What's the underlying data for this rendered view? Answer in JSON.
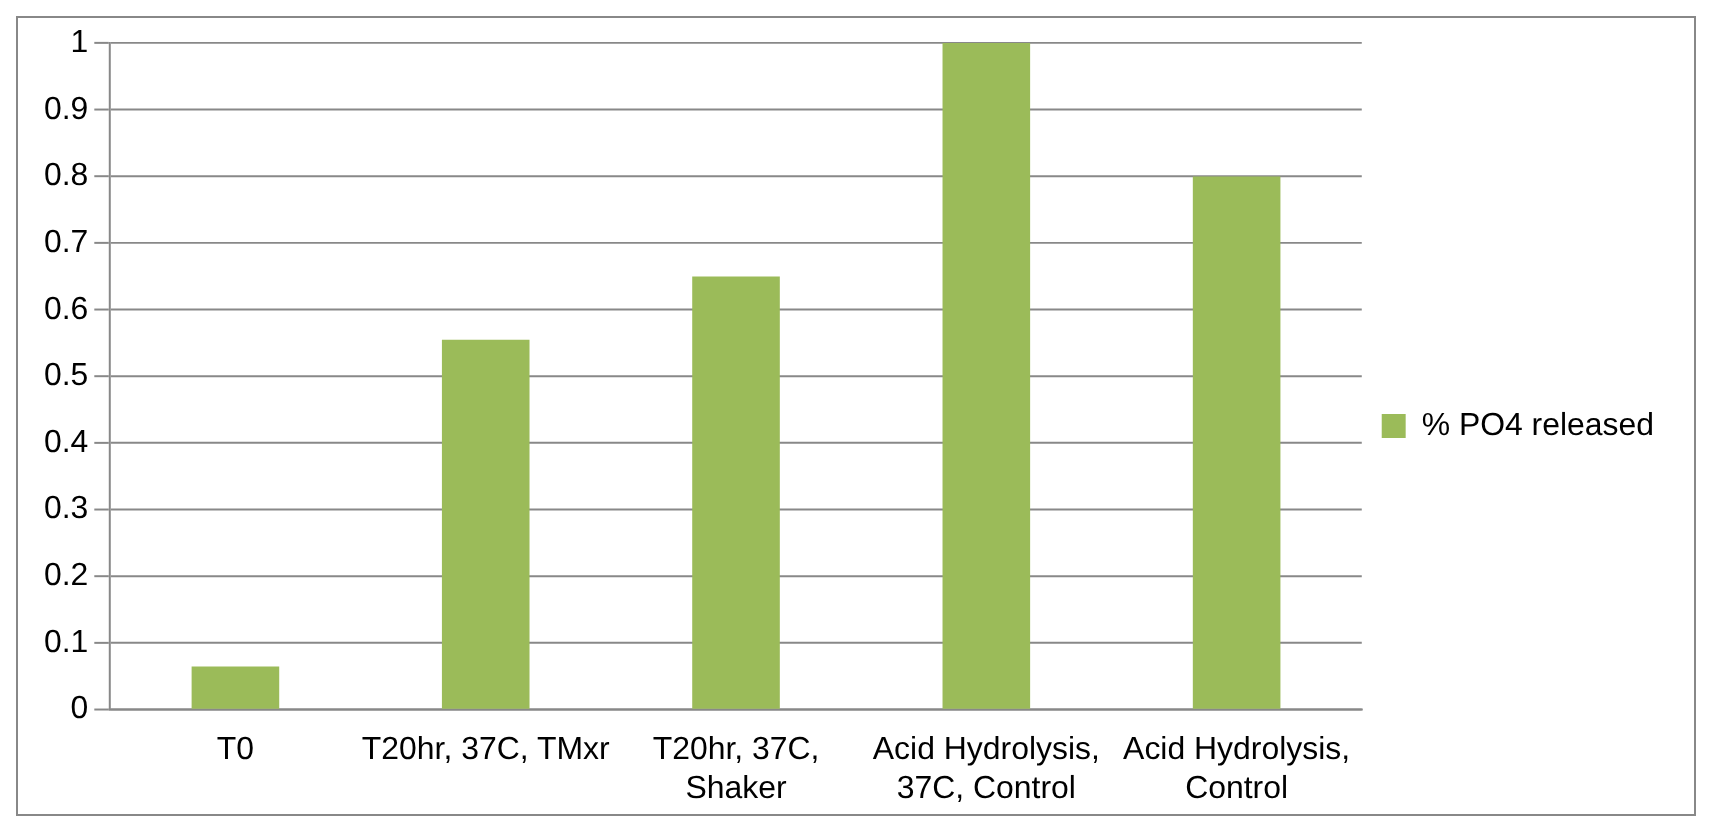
{
  "chart_data": {
    "type": "bar",
    "categories": [
      "T0",
      "T20hr, 37C, TMxr",
      "T20hr, 37C, Shaker",
      "Acid Hydrolysis, 37C, Control",
      "Acid Hydrolysis, Control"
    ],
    "series": [
      {
        "name": "% PO4 released",
        "color": "#9bbb59",
        "values": [
          0.065,
          0.555,
          0.65,
          1.0,
          0.8
        ]
      }
    ],
    "ylim": [
      0,
      1
    ],
    "yticks": [
      0,
      0.1,
      0.2,
      0.3,
      0.4,
      0.5,
      0.6,
      0.7,
      0.8,
      0.9,
      1
    ],
    "grid": "y",
    "legend": "right"
  }
}
